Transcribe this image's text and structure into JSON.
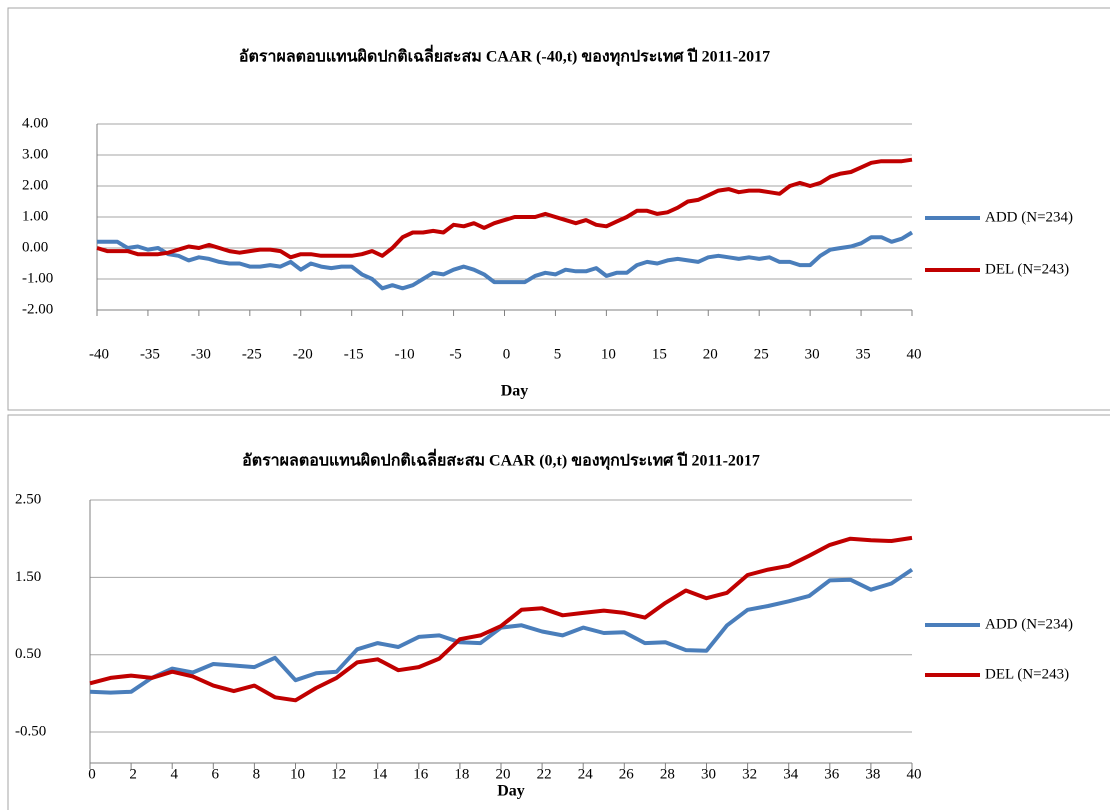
{
  "chart_data": [
    {
      "type": "line",
      "title": "อัตราผลตอบแทนผิดปกติเฉลี่ยสะสม CAAR (-40,t) ของทุกประเทศ ปี 2011-2017",
      "x_label": "Day",
      "x": [
        -40,
        -39,
        -38,
        -37,
        -36,
        -35,
        -34,
        -33,
        -32,
        -31,
        -30,
        -29,
        -28,
        -27,
        -26,
        -25,
        -24,
        -23,
        -22,
        -21,
        -20,
        -19,
        -18,
        -17,
        -16,
        -15,
        -14,
        -13,
        -12,
        -11,
        -10,
        -9,
        -8,
        -7,
        -6,
        -5,
        -4,
        -3,
        -2,
        -1,
        0,
        1,
        2,
        3,
        4,
        5,
        6,
        7,
        8,
        9,
        10,
        11,
        12,
        13,
        14,
        15,
        16,
        17,
        18,
        19,
        20,
        21,
        22,
        23,
        24,
        25,
        26,
        27,
        28,
        29,
        30,
        31,
        32,
        33,
        34,
        35,
        36,
        37,
        38,
        39,
        40
      ],
      "series": [
        {
          "name": "ADD (N=234)",
          "color": "#4a7ebb",
          "values": [
            0.2,
            0.2,
            0.2,
            0.0,
            0.05,
            -0.05,
            0.0,
            -0.2,
            -0.25,
            -0.4,
            -0.3,
            -0.35,
            -0.45,
            -0.5,
            -0.5,
            -0.6,
            -0.6,
            -0.55,
            -0.6,
            -0.45,
            -0.7,
            -0.5,
            -0.6,
            -0.65,
            -0.6,
            -0.6,
            -0.85,
            -1.0,
            -1.3,
            -1.2,
            -1.3,
            -1.2,
            -1.0,
            -0.8,
            -0.85,
            -0.7,
            -0.6,
            -0.7,
            -0.85,
            -1.1,
            -1.1,
            -1.1,
            -1.1,
            -0.9,
            -0.8,
            -0.85,
            -0.7,
            -0.75,
            -0.75,
            -0.65,
            -0.9,
            -0.8,
            -0.8,
            -0.55,
            -0.45,
            -0.5,
            -0.4,
            -0.35,
            -0.4,
            -0.45,
            -0.3,
            -0.25,
            -0.3,
            -0.35,
            -0.3,
            -0.35,
            -0.3,
            -0.45,
            -0.45,
            -0.55,
            -0.55,
            -0.25,
            -0.05,
            0.0,
            0.05,
            0.15,
            0.35,
            0.35,
            0.2,
            0.3,
            0.5
          ]
        },
        {
          "name": "DEL (N=243)",
          "color": "#c00000",
          "values": [
            0.0,
            -0.1,
            -0.1,
            -0.1,
            -0.2,
            -0.2,
            -0.2,
            -0.15,
            -0.05,
            0.05,
            0.0,
            0.1,
            0.0,
            -0.1,
            -0.15,
            -0.1,
            -0.05,
            -0.05,
            -0.1,
            -0.3,
            -0.2,
            -0.2,
            -0.25,
            -0.25,
            -0.25,
            -0.25,
            -0.2,
            -0.1,
            -0.25,
            0.0,
            0.35,
            0.5,
            0.5,
            0.55,
            0.5,
            0.75,
            0.7,
            0.8,
            0.65,
            0.8,
            0.9,
            1.0,
            1.0,
            1.0,
            1.1,
            1.0,
            0.9,
            0.8,
            0.9,
            0.75,
            0.7,
            0.85,
            1.0,
            1.2,
            1.2,
            1.1,
            1.15,
            1.3,
            1.5,
            1.55,
            1.7,
            1.85,
            1.9,
            1.8,
            1.85,
            1.85,
            1.8,
            1.75,
            2.0,
            2.1,
            2.0,
            2.1,
            2.3,
            2.4,
            2.45,
            2.6,
            2.75,
            2.8,
            2.8,
            2.8,
            2.85
          ]
        }
      ],
      "xlim": [
        -40,
        40
      ],
      "xticks": [
        -40,
        -35,
        -30,
        -25,
        -20,
        -15,
        -10,
        -5,
        0,
        5,
        10,
        15,
        20,
        25,
        30,
        35,
        40
      ],
      "ylim": [
        -2,
        4
      ],
      "yticks": [
        {
          "value": -2,
          "label": "-2.00"
        },
        {
          "value": -1,
          "label": "-1.00"
        },
        {
          "value": 0,
          "label": "0.00"
        },
        {
          "value": 1,
          "label": "1.00"
        },
        {
          "value": 2,
          "label": "2.00"
        },
        {
          "value": 3,
          "label": "3.00"
        },
        {
          "value": 4,
          "label": "4.00"
        }
      ],
      "grid": true,
      "legend": "right"
    },
    {
      "type": "line",
      "title": "อัตราผลตอบแทนผิดปกติเฉลี่ยสะสม CAAR (0,t) ของทุกประเทศ ปี 2011-2017",
      "x_label": "Day",
      "x": [
        0,
        1,
        2,
        3,
        4,
        5,
        6,
        7,
        8,
        9,
        10,
        11,
        12,
        13,
        14,
        15,
        16,
        17,
        18,
        19,
        20,
        21,
        22,
        23,
        24,
        25,
        26,
        27,
        28,
        29,
        30,
        31,
        32,
        33,
        34,
        35,
        36,
        37,
        38,
        39,
        40
      ],
      "series": [
        {
          "name": "ADD (N=234)",
          "color": "#4a7ebb",
          "values": [
            0.02,
            0.01,
            0.02,
            0.2,
            0.32,
            0.27,
            0.38,
            0.36,
            0.34,
            0.46,
            0.17,
            0.26,
            0.28,
            0.57,
            0.65,
            0.6,
            0.73,
            0.75,
            0.66,
            0.65,
            0.85,
            0.88,
            0.8,
            0.75,
            0.85,
            0.78,
            0.79,
            0.65,
            0.66,
            0.56,
            0.55,
            0.88,
            1.08,
            1.13,
            1.19,
            1.26,
            1.46,
            1.47,
            1.34,
            1.42,
            1.6
          ]
        },
        {
          "name": "DEL (N=243)",
          "color": "#c00000",
          "values": [
            0.13,
            0.2,
            0.23,
            0.2,
            0.28,
            0.22,
            0.1,
            0.03,
            0.1,
            -0.05,
            -0.09,
            0.07,
            0.2,
            0.4,
            0.44,
            0.3,
            0.34,
            0.45,
            0.7,
            0.75,
            0.87,
            1.08,
            1.1,
            1.01,
            1.04,
            1.07,
            1.04,
            0.98,
            1.17,
            1.33,
            1.23,
            1.3,
            1.53,
            1.6,
            1.65,
            1.78,
            1.92,
            2.0,
            1.98,
            1.97,
            2.01
          ]
        }
      ],
      "xlim": [
        0,
        40
      ],
      "xticks": [
        0,
        2,
        4,
        6,
        8,
        10,
        12,
        14,
        16,
        18,
        20,
        22,
        24,
        26,
        28,
        30,
        32,
        34,
        36,
        38,
        40
      ],
      "ylim": [
        -0.9,
        2.5
      ],
      "yticks": [
        {
          "value": -0.5,
          "label": "-0.50"
        },
        {
          "value": 0.5,
          "label": "0.50"
        },
        {
          "value": 1.5,
          "label": "1.50"
        },
        {
          "value": 2.5,
          "label": "2.50"
        }
      ],
      "grid": true,
      "legend": "right"
    }
  ]
}
